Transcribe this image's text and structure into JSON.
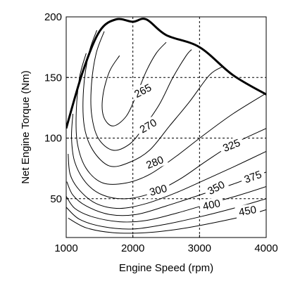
{
  "chart_data": {
    "type": "contour",
    "title": "",
    "xlabel": "Engine Speed (rpm)",
    "ylabel": "Net Engine Torque (Nm)",
    "xlim": [
      1000,
      4000
    ],
    "ylim": [
      18,
      200
    ],
    "xticks": [
      1000,
      2000,
      3000,
      4000
    ],
    "yticks": [
      50,
      100,
      150,
      200
    ],
    "grid": "dashed",
    "max_torque_curve": [
      [
        1000,
        108
      ],
      [
        1250,
        155
      ],
      [
        1500,
        188
      ],
      [
        1750,
        198
      ],
      [
        2000,
        196
      ],
      [
        2200,
        198
      ],
      [
        2500,
        185
      ],
      [
        3000,
        175
      ],
      [
        3500,
        152
      ],
      [
        4000,
        136
      ]
    ],
    "contours": [
      {
        "level": "265",
        "points": [
          [
            1800,
            168
          ],
          [
            1650,
            155
          ],
          [
            1550,
            135
          ],
          [
            1560,
            118
          ],
          [
            1700,
            110
          ],
          [
            1900,
            118
          ],
          [
            2050,
            135
          ],
          [
            2200,
            155
          ],
          [
            2350,
            170
          ],
          [
            2500,
            179
          ]
        ]
      },
      {
        "level": "270",
        "points": [
          [
            1570,
            188
          ],
          [
            1450,
            170
          ],
          [
            1380,
            145
          ],
          [
            1380,
            120
          ],
          [
            1480,
            100
          ],
          [
            1700,
            90
          ],
          [
            1950,
            95
          ],
          [
            2150,
            108
          ],
          [
            2400,
            128
          ],
          [
            2600,
            150
          ],
          [
            2800,
            168
          ],
          [
            2880,
            173
          ]
        ]
      },
      {
        "level": "280",
        "points": [
          [
            1460,
            189
          ],
          [
            1340,
            170
          ],
          [
            1260,
            140
          ],
          [
            1270,
            110
          ],
          [
            1400,
            90
          ],
          [
            1650,
            77
          ],
          [
            1950,
            80
          ],
          [
            2250,
            90
          ],
          [
            2550,
            110
          ],
          [
            2850,
            130
          ],
          [
            3150,
            152
          ],
          [
            3350,
            159
          ]
        ]
      },
      {
        "level": "300",
        "points": [
          [
            1300,
            170
          ],
          [
            1200,
            150
          ],
          [
            1150,
            120
          ],
          [
            1170,
            95
          ],
          [
            1300,
            75
          ],
          [
            1550,
            63
          ],
          [
            1900,
            63
          ],
          [
            2250,
            70
          ],
          [
            2650,
            85
          ],
          [
            3050,
            102
          ],
          [
            3500,
            120
          ],
          [
            4000,
            137
          ]
        ]
      },
      {
        "level": "325",
        "points": [
          [
            1100,
            120
          ],
          [
            1080,
            100
          ],
          [
            1130,
            80
          ],
          [
            1300,
            63
          ],
          [
            1550,
            53
          ],
          [
            1900,
            50
          ],
          [
            2300,
            55
          ],
          [
            2700,
            66
          ],
          [
            3100,
            81
          ],
          [
            3500,
            95
          ],
          [
            4000,
            108
          ]
        ]
      },
      {
        "level": "350",
        "points": [
          [
            1030,
            87
          ],
          [
            1060,
            70
          ],
          [
            1200,
            57
          ],
          [
            1450,
            46
          ],
          [
            1800,
            42
          ],
          [
            2200,
            46
          ],
          [
            2650,
            55
          ],
          [
            3100,
            66
          ],
          [
            3500,
            76
          ],
          [
            4000,
            89
          ]
        ]
      },
      {
        "level": "375",
        "points": [
          [
            1010,
            64
          ],
          [
            1100,
            53
          ],
          [
            1300,
            44
          ],
          [
            1650,
            37
          ],
          [
            2050,
            37
          ],
          [
            2500,
            44
          ],
          [
            3000,
            53
          ],
          [
            3500,
            62
          ],
          [
            4000,
            72
          ]
        ]
      },
      {
        "level": "400",
        "points": [
          [
            1000,
            52
          ],
          [
            1130,
            42
          ],
          [
            1400,
            35
          ],
          [
            1800,
            31
          ],
          [
            2200,
            32
          ],
          [
            2650,
            38
          ],
          [
            3150,
            46
          ],
          [
            3600,
            53
          ],
          [
            4000,
            60
          ]
        ]
      },
      {
        "level": "450",
        "points": [
          [
            1000,
            43
          ],
          [
            1200,
            33
          ],
          [
            1550,
            27
          ],
          [
            2000,
            25
          ],
          [
            2500,
            29
          ],
          [
            3000,
            35
          ],
          [
            3500,
            42
          ],
          [
            4000,
            50
          ]
        ]
      },
      {
        "level": "",
        "points": [
          [
            1030,
            34
          ],
          [
            1300,
            26
          ],
          [
            1700,
            22
          ],
          [
            2200,
            22
          ],
          [
            2700,
            25
          ],
          [
            3200,
            30
          ],
          [
            3700,
            36
          ],
          [
            4000,
            41
          ]
        ]
      }
    ],
    "labels": [
      {
        "text": "265",
        "x": 2150,
        "y": 139,
        "angle": -28
      },
      {
        "text": "270",
        "x": 2230,
        "y": 110,
        "angle": -30
      },
      {
        "text": "280",
        "x": 2330,
        "y": 80,
        "angle": -22
      },
      {
        "text": "300",
        "x": 2380,
        "y": 57,
        "angle": -15
      },
      {
        "text": "325",
        "x": 3480,
        "y": 94,
        "angle": -22
      },
      {
        "text": "350",
        "x": 3250,
        "y": 59,
        "angle": -28
      },
      {
        "text": "375",
        "x": 3800,
        "y": 68,
        "angle": -20
      },
      {
        "text": "400",
        "x": 3180,
        "y": 45,
        "angle": -12
      },
      {
        "text": "450",
        "x": 3720,
        "y": 40,
        "angle": -10
      }
    ]
  }
}
